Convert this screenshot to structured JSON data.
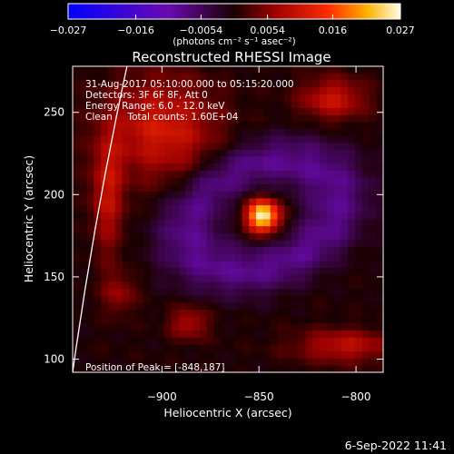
{
  "chart_data": {
    "type": "heatmap",
    "title": "Reconstructed RHESSI Image",
    "xlabel": "Heliocentric X (arcsec)",
    "ylabel": "Heliocentric Y (arcsec)",
    "xlim": [
      -946,
      -786
    ],
    "ylim": [
      92,
      278
    ],
    "x_ticks": [
      -900,
      -850,
      -800
    ],
    "x_tick_labels": [
      "−900",
      "−850",
      "−800"
    ],
    "y_ticks": [
      100,
      150,
      200,
      250
    ],
    "y_tick_labels": [
      "100",
      "150",
      "200",
      "250"
    ],
    "colorbar": {
      "range": [
        -0.027,
        0.027
      ],
      "ticks": [
        -0.027,
        -0.016,
        -0.0054,
        0.0054,
        0.016,
        0.027
      ],
      "tick_labels": [
        "−0.027",
        "−0.016",
        "−0.0054",
        "0.0054",
        "0.016",
        "0.027"
      ],
      "unit_label": "(photons cm⁻² s⁻¹ asec⁻²)"
    },
    "annotations": [
      "31-Aug-2017 05:10:00.000 to 05:15:20.000",
      "Detectors: 3F 6F 8F, Att 0",
      "Energy Range: 6.0 - 12.0 keV",
      "Clean     Total counts: 1.60E+04"
    ],
    "peak_label": "Position of Peak = [-848,187]",
    "peak": {
      "x": -848,
      "y": 187,
      "value": 0.027
    },
    "limb_points": [
      [
        -946,
        92
      ],
      [
        -935,
        185
      ],
      [
        -918,
        278
      ]
    ],
    "sources": [
      {
        "x": -848,
        "y": 187,
        "sx": 6,
        "sy": 7,
        "amp": 0.027
      },
      {
        "x": -900,
        "y": 240,
        "sx": 20,
        "sy": 22,
        "amp": 0.011
      },
      {
        "x": -928,
        "y": 200,
        "sx": 6,
        "sy": 26,
        "amp": 0.009
      },
      {
        "x": -812,
        "y": 258,
        "sx": 12,
        "sy": 9,
        "amp": 0.01
      },
      {
        "x": -806,
        "y": 108,
        "sx": 18,
        "sy": 7,
        "amp": 0.009
      },
      {
        "x": -886,
        "y": 122,
        "sx": 7,
        "sy": 7,
        "amp": 0.008
      },
      {
        "x": -922,
        "y": 140,
        "sx": 6,
        "sy": 9,
        "amp": 0.006
      }
    ]
  },
  "footer": {
    "timestamp": "6-Sep-2022 11:41"
  }
}
